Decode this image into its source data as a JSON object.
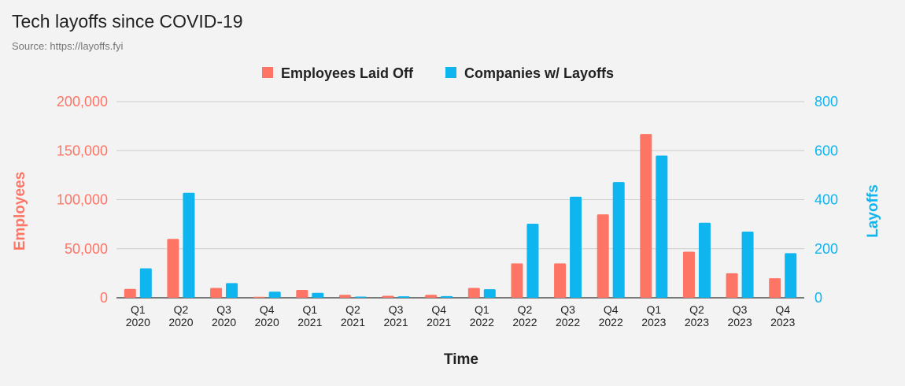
{
  "title": "Tech layoffs since COVID-19",
  "subtitle": "Source: https://layoffs.fyi",
  "chart_data": {
    "type": "bar",
    "categories": [
      [
        "Q1",
        "2020"
      ],
      [
        "Q2",
        "2020"
      ],
      [
        "Q3",
        "2020"
      ],
      [
        "Q4",
        "2020"
      ],
      [
        "Q1",
        "2021"
      ],
      [
        "Q2",
        "2021"
      ],
      [
        "Q3",
        "2021"
      ],
      [
        "Q4",
        "2021"
      ],
      [
        "Q1",
        "2022"
      ],
      [
        "Q2",
        "2022"
      ],
      [
        "Q3",
        "2022"
      ],
      [
        "Q4",
        "2022"
      ],
      [
        "Q1",
        "2023"
      ],
      [
        "Q2",
        "2023"
      ],
      [
        "Q3",
        "2023"
      ],
      [
        "Q4",
        "2023"
      ]
    ],
    "series": [
      {
        "name": "Employees Laid Off",
        "axis": "left",
        "color": "#ff7565",
        "values": [
          9000,
          60000,
          10000,
          1000,
          8000,
          3000,
          2000,
          3000,
          10000,
          35000,
          35000,
          85000,
          167000,
          47000,
          25000,
          20000
        ]
      },
      {
        "name": "Companies w/ Layoffs",
        "axis": "right",
        "color": "#0eb5ef",
        "values": [
          120,
          428,
          60,
          25,
          20,
          5,
          6,
          7,
          35,
          302,
          412,
          472,
          580,
          306,
          270,
          182
        ]
      }
    ],
    "left_axis": {
      "label": "Employees",
      "ylim": [
        0,
        200000
      ],
      "ticks": [
        "0",
        "50,000",
        "100,000",
        "150,000",
        "200,000"
      ],
      "color": "#ff7565"
    },
    "right_axis": {
      "label": "Layoffs",
      "ylim": [
        0,
        800
      ],
      "ticks": [
        "0",
        "200",
        "400",
        "600",
        "800"
      ],
      "color": "#0eb5ef"
    },
    "xlabel": "Time",
    "grid": true,
    "legend_position": "top-center"
  }
}
